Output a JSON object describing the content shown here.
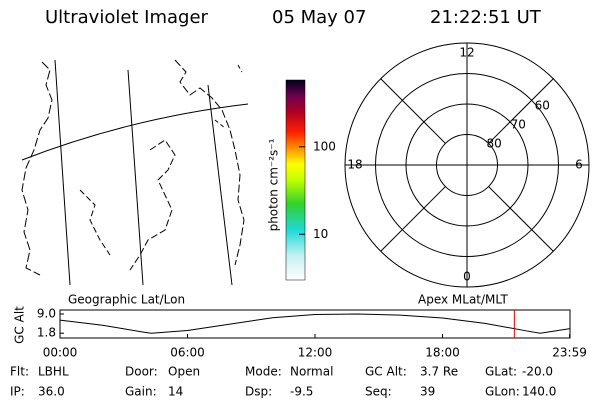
{
  "header": {
    "title": "Ultraviolet Imager",
    "date": "05 May 07",
    "time": "21:22:51 UT"
  },
  "map": {
    "label": "Geographic Lat/Lon"
  },
  "colorbar": {
    "label": "photon cm⁻²s⁻¹",
    "scale": "log",
    "lim": [
      3,
      580
    ],
    "ticks": [
      10,
      100
    ]
  },
  "polar": {
    "label": "Apex MLat/MLT",
    "lim": [
      50,
      90
    ],
    "mlt_labels": [
      12,
      18,
      6,
      0
    ],
    "lat_labels": [
      60,
      70,
      80
    ]
  },
  "altitude": {
    "label": "GC Alt",
    "xlim": [
      0,
      24
    ],
    "ylim": [
      0,
      10.5
    ],
    "yticks": [
      {
        "value": 9,
        "label": "9.0"
      },
      1.8
    ],
    "xticks": [
      {
        "value": 0,
        "label": "00:00"
      },
      {
        "value": 6,
        "label": "06:00"
      },
      {
        "value": 12,
        "label": "12:00"
      },
      {
        "value": 18,
        "label": "18:00"
      },
      {
        "value": 23.98,
        "label": "23:59"
      }
    ],
    "x": [
      0,
      2,
      4,
      4.3,
      6,
      8,
      10,
      12,
      14,
      16,
      18,
      20,
      22,
      22.6,
      24
    ],
    "values": [
      6.7,
      4.8,
      2.1,
      1.8,
      2.8,
      5.2,
      7.6,
      8.8,
      9.0,
      8.6,
      7.5,
      5.5,
      2.6,
      1.8,
      3.5
    ],
    "marker_hour": 21.38,
    "marker_color": "#e00000"
  },
  "footer": {
    "rows": [
      [
        {
          "label": "Flt:",
          "value": "LBHL"
        },
        {
          "label": "Door:",
          "value": "Open"
        },
        {
          "label": "Mode:",
          "value": "Normal"
        },
        {
          "label": "GC Alt:",
          "value": "3.7 Re"
        },
        {
          "label": "GLat:",
          "value": "-20.0"
        }
      ],
      [
        {
          "label": "IP:",
          "value": "36.0"
        },
        {
          "label": "Gain:",
          "value": "14"
        },
        {
          "label": "Dsp:",
          "value": "-9.5"
        },
        {
          "label": "Seq:",
          "value": "39"
        },
        {
          "label": "GLon:",
          "value": "140.0"
        }
      ]
    ]
  }
}
